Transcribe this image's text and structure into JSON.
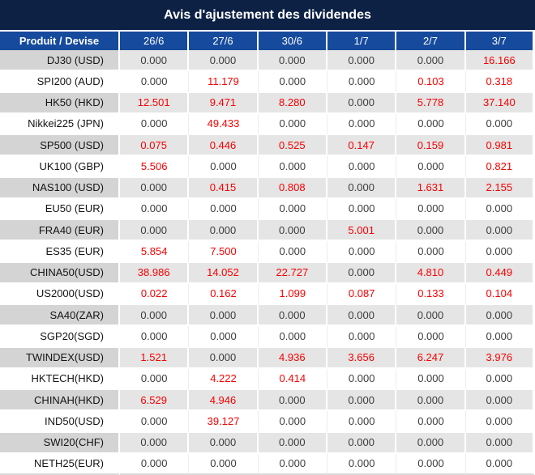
{
  "title": "Avis d'ajustement des dividendes",
  "colors": {
    "title_bg": "#0d2145",
    "header_bg": "#154a9d",
    "header_text": "#ffffff",
    "shaded_label_bg": "#d4d4d4",
    "shaded_cell_bg": "#e5e5e5",
    "value_red": "#f80000",
    "value_black": "#3c3c3c",
    "label_text": "#131313"
  },
  "table": {
    "columns": [
      "Produit / Devise",
      "26/6",
      "27/6",
      "30/6",
      "1/7",
      "2/7",
      "3/7"
    ],
    "rows": [
      {
        "label": "DJ30 (USD)",
        "shaded": true,
        "values": [
          "0.000",
          "0.000",
          "0.000",
          "0.000",
          "0.000",
          "16.166"
        ],
        "red": [
          0,
          0,
          0,
          0,
          0,
          1
        ]
      },
      {
        "label": "SPI200 (AUD)",
        "shaded": false,
        "values": [
          "0.000",
          "11.179",
          "0.000",
          "0.000",
          "0.103",
          "0.318"
        ],
        "red": [
          0,
          1,
          0,
          0,
          1,
          1
        ]
      },
      {
        "label": "HK50 (HKD)",
        "shaded": true,
        "values": [
          "12.501",
          "9.471",
          "8.280",
          "0.000",
          "5.778",
          "37.140"
        ],
        "red": [
          1,
          1,
          1,
          0,
          1,
          1
        ]
      },
      {
        "label": "Nikkei225 (JPN)",
        "shaded": false,
        "values": [
          "0.000",
          "49.433",
          "0.000",
          "0.000",
          "0.000",
          "0.000"
        ],
        "red": [
          0,
          1,
          0,
          0,
          0,
          0
        ]
      },
      {
        "label": "SP500 (USD)",
        "shaded": true,
        "values": [
          "0.075",
          "0.446",
          "0.525",
          "0.147",
          "0.159",
          "0.981"
        ],
        "red": [
          1,
          1,
          1,
          1,
          1,
          1
        ]
      },
      {
        "label": "UK100 (GBP)",
        "shaded": false,
        "values": [
          "5.506",
          "0.000",
          "0.000",
          "0.000",
          "0.000",
          "0.821"
        ],
        "red": [
          1,
          0,
          0,
          0,
          0,
          1
        ]
      },
      {
        "label": "NAS100 (USD)",
        "shaded": true,
        "values": [
          "0.000",
          "0.415",
          "0.808",
          "0.000",
          "1.631",
          "2.155"
        ],
        "red": [
          0,
          1,
          1,
          0,
          1,
          1
        ]
      },
      {
        "label": "EU50 (EUR)",
        "shaded": false,
        "values": [
          "0.000",
          "0.000",
          "0.000",
          "0.000",
          "0.000",
          "0.000"
        ],
        "red": [
          0,
          0,
          0,
          0,
          0,
          0
        ]
      },
      {
        "label": "FRA40 (EUR)",
        "shaded": true,
        "values": [
          "0.000",
          "0.000",
          "0.000",
          "5.001",
          "0.000",
          "0.000"
        ],
        "red": [
          0,
          0,
          0,
          1,
          0,
          0
        ]
      },
      {
        "label": "ES35 (EUR)",
        "shaded": false,
        "values": [
          "5.854",
          "7.500",
          "0.000",
          "0.000",
          "0.000",
          "0.000"
        ],
        "red": [
          1,
          1,
          0,
          0,
          0,
          0
        ]
      },
      {
        "label": "CHINA50(USD)",
        "shaded": true,
        "values": [
          "38.986",
          "14.052",
          "22.727",
          "0.000",
          "4.810",
          "0.449"
        ],
        "red": [
          1,
          1,
          1,
          0,
          1,
          1
        ]
      },
      {
        "label": "US2000(USD)",
        "shaded": false,
        "values": [
          "0.022",
          "0.162",
          "1.099",
          "0.087",
          "0.133",
          "0.104"
        ],
        "red": [
          1,
          1,
          1,
          1,
          1,
          1
        ]
      },
      {
        "label": "SA40(ZAR)",
        "shaded": true,
        "values": [
          "0.000",
          "0.000",
          "0.000",
          "0.000",
          "0.000",
          "0.000"
        ],
        "red": [
          0,
          0,
          0,
          0,
          0,
          0
        ]
      },
      {
        "label": "SGP20(SGD)",
        "shaded": false,
        "values": [
          "0.000",
          "0.000",
          "0.000",
          "0.000",
          "0.000",
          "0.000"
        ],
        "red": [
          0,
          0,
          0,
          0,
          0,
          0
        ]
      },
      {
        "label": "TWINDEX(USD)",
        "shaded": true,
        "values": [
          "1.521",
          "0.000",
          "4.936",
          "3.656",
          "6.247",
          "3.976"
        ],
        "red": [
          1,
          0,
          1,
          1,
          1,
          1
        ]
      },
      {
        "label": "HKTECH(HKD)",
        "shaded": false,
        "values": [
          "0.000",
          "4.222",
          "0.414",
          "0.000",
          "0.000",
          "0.000"
        ],
        "red": [
          0,
          1,
          1,
          0,
          0,
          0
        ]
      },
      {
        "label": "CHINAH(HKD)",
        "shaded": true,
        "values": [
          "6.529",
          "4.946",
          "0.000",
          "0.000",
          "0.000",
          "0.000"
        ],
        "red": [
          1,
          1,
          0,
          0,
          0,
          0
        ]
      },
      {
        "label": "IND50(USD)",
        "shaded": false,
        "values": [
          "0.000",
          "39.127",
          "0.000",
          "0.000",
          "0.000",
          "0.000"
        ],
        "red": [
          0,
          1,
          0,
          0,
          0,
          0
        ]
      },
      {
        "label": "SWI20(CHF)",
        "shaded": true,
        "values": [
          "0.000",
          "0.000",
          "0.000",
          "0.000",
          "0.000",
          "0.000"
        ],
        "red": [
          0,
          0,
          0,
          0,
          0,
          0
        ]
      },
      {
        "label": "NETH25(EUR)",
        "shaded": false,
        "values": [
          "0.000",
          "0.000",
          "0.000",
          "0.000",
          "0.000",
          "0.000"
        ],
        "red": [
          0,
          0,
          0,
          0,
          0,
          0
        ]
      }
    ]
  }
}
